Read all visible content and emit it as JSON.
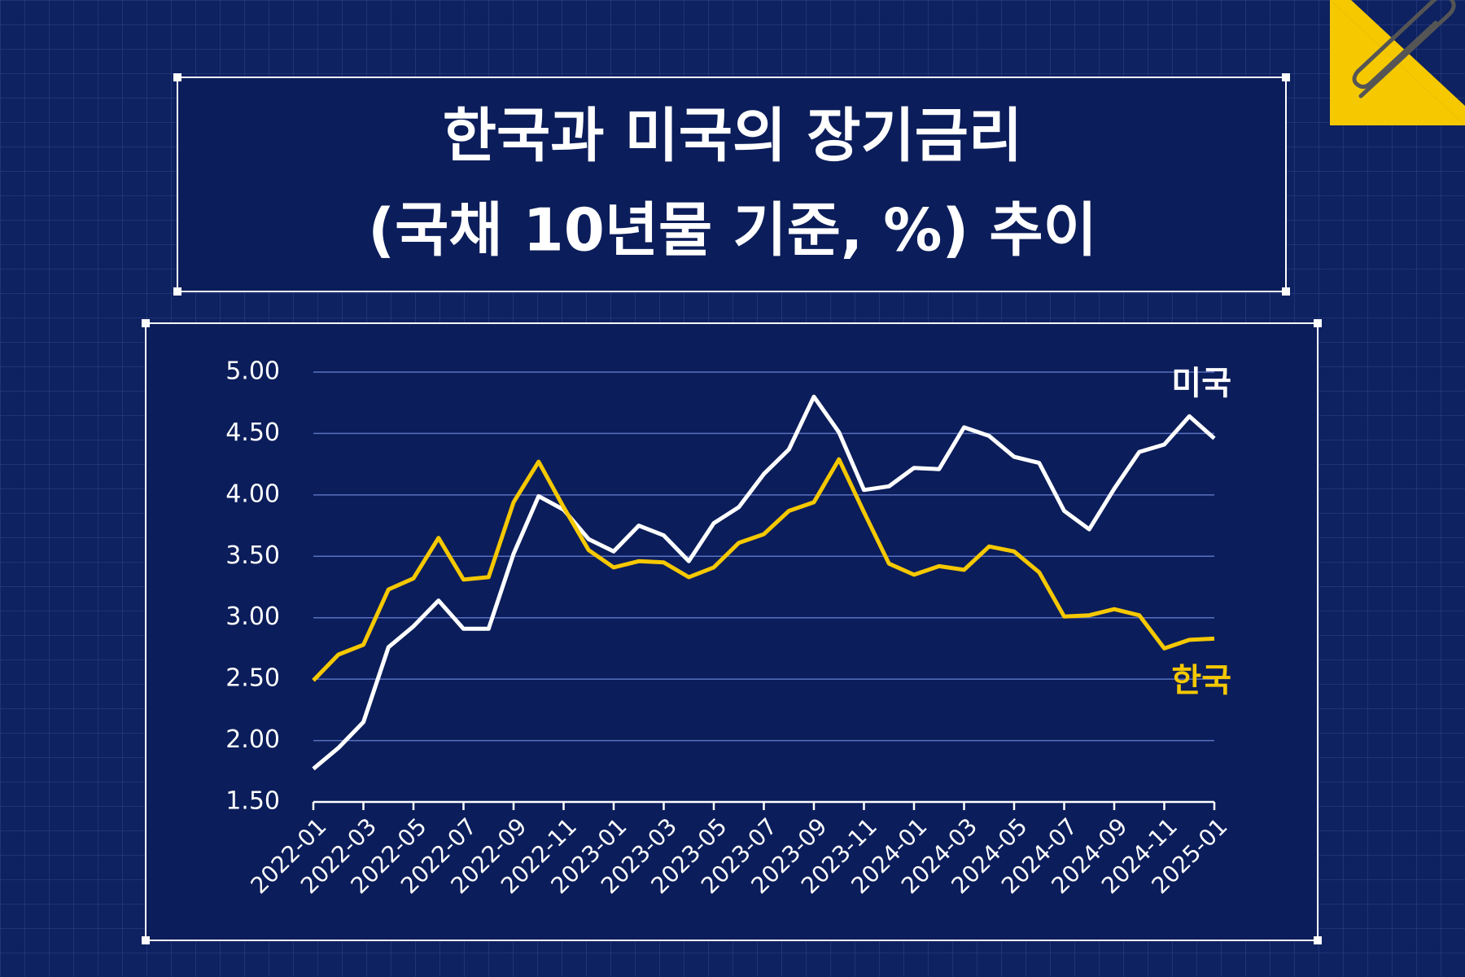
{
  "chart_data": {
    "type": "line",
    "title": [
      "한국과 미국의 장기금리",
      "(국채 10년물 기준, %) 추이"
    ],
    "categories": [
      "2022-01",
      null,
      "2022-03",
      null,
      "2022-05",
      null,
      "2022-07",
      null,
      "2022-09",
      null,
      "2022-11",
      null,
      "2023-01",
      null,
      "2023-03",
      null,
      "2023-05",
      null,
      "2023-07",
      null,
      "2023-09",
      null,
      "2023-11",
      null,
      "2024-01",
      null,
      "2024-03",
      null,
      "2024-05",
      null,
      "2024-07",
      null,
      "2024-09",
      null,
      "2024-11",
      null,
      "2025-01"
    ],
    "series": [
      {
        "name": "미국",
        "color": "#ffffff",
        "values": [
          1.77,
          1.94,
          2.15,
          2.76,
          2.93,
          3.14,
          2.91,
          2.91,
          3.52,
          3.99,
          3.88,
          3.64,
          3.54,
          3.75,
          3.67,
          3.46,
          3.77,
          3.9,
          4.17,
          4.37,
          4.8,
          4.51,
          4.04,
          4.07,
          4.22,
          4.21,
          4.55,
          4.48,
          4.31,
          4.26,
          3.87,
          3.72,
          4.05,
          4.35,
          4.41,
          4.64,
          4.46
        ]
      },
      {
        "name": "한국",
        "color": "#f5c800",
        "values": [
          2.49,
          2.7,
          2.78,
          3.23,
          3.32,
          3.65,
          3.31,
          3.33,
          3.94,
          4.27,
          3.9,
          3.55,
          3.41,
          3.46,
          3.45,
          3.33,
          3.41,
          3.61,
          3.68,
          3.87,
          3.94,
          4.29,
          3.86,
          3.44,
          3.35,
          3.42,
          3.39,
          3.58,
          3.54,
          3.37,
          3.01,
          3.02,
          3.07,
          3.02,
          2.75,
          2.82,
          2.83
        ]
      }
    ],
    "ylim": [
      1.5,
      5.0
    ],
    "yticks": [
      {
        "value": 1.5,
        "label": "1.50"
      },
      {
        "value": 2,
        "label": "2.00"
      },
      {
        "value": 2.5,
        "label": "2.50"
      },
      {
        "value": 3,
        "label": "3.00"
      },
      {
        "value": 3.5,
        "label": "3.50"
      },
      {
        "value": 4,
        "label": "4.00"
      },
      {
        "value": 4.5,
        "label": "4.50"
      },
      {
        "value": 5,
        "label": "5.00"
      }
    ],
    "grid": true
  }
}
